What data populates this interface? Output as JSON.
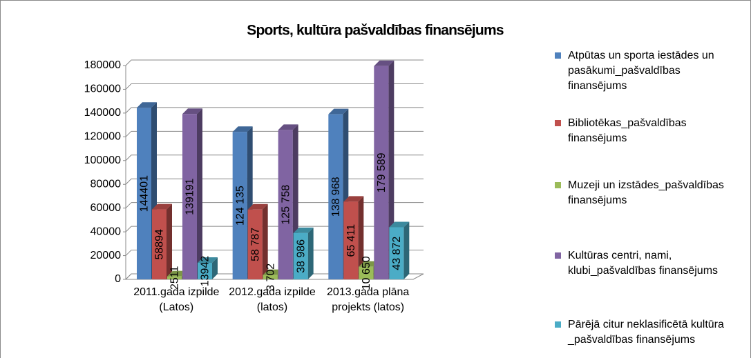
{
  "chart_data": {
    "type": "bar3d",
    "title": "Sports, kultūra pašvaldības finansējums",
    "categories": [
      "2011.gada izpilde (Latos)",
      "2012.gada izpilde   (latos)",
      "2013.gada plāna projekts (latos)"
    ],
    "series": [
      {
        "name": "Atpūtas un sporta iestādes un pasākumi_pašvaldības finansējums",
        "color": "#4f81bd",
        "values": [
          144401,
          124135,
          138968
        ],
        "value_labels": [
          "144401",
          "124 135",
          "138 968"
        ]
      },
      {
        "name": "Bibliotēkas_pašvaldības finansējums",
        "color": "#c0504d",
        "values": [
          58894,
          58787,
          65411
        ],
        "value_labels": [
          "58894",
          "58 787",
          "65 411"
        ]
      },
      {
        "name": "Muzeji un izstādes_pašvaldības finansējums",
        "color": "#9bbb59",
        "values": [
          2511,
          3702,
          10650
        ],
        "value_labels": [
          "2511",
          "3 702",
          "10 650"
        ]
      },
      {
        "name": "Kultūras centri, nami, klubi_pašvaldības finansējums",
        "color": "#8064a2",
        "values": [
          139191,
          125758,
          179589
        ],
        "value_labels": [
          "139191",
          "125 758",
          "179 589"
        ]
      },
      {
        "name": "Pārējā citur neklasificētā kultūra _pašvaldības finansējums",
        "color": "#4bacc6",
        "values": [
          13942,
          38986,
          43872
        ],
        "value_labels": [
          "13942",
          "38 986",
          "43 872"
        ]
      }
    ],
    "ylim": [
      0,
      180000
    ],
    "yticks": [
      0,
      20000,
      40000,
      60000,
      80000,
      100000,
      120000,
      140000,
      160000,
      180000
    ],
    "grid": true,
    "legend": "right"
  }
}
